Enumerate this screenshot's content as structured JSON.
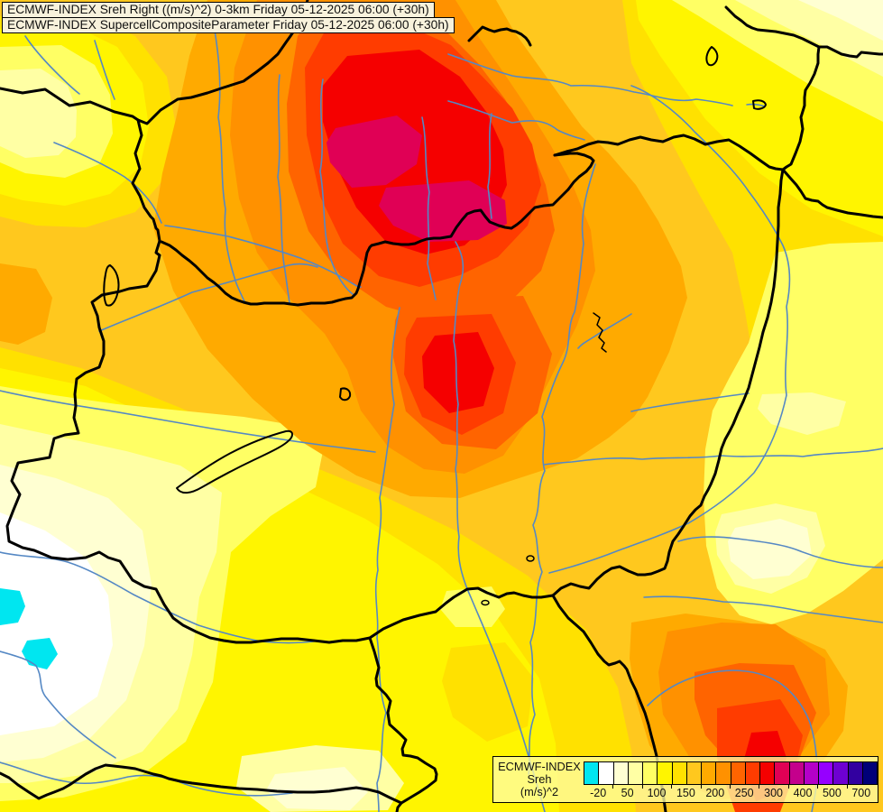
{
  "header": {
    "line1": "ECMWF-INDEX Sreh Right ((m/s)^2) 0-3km Friday 05-12-2025 06:00 (+30h)",
    "line2": "ECMWF-INDEX SupercellCompositeParameter Friday 05-12-2025 06:00 (+30h)"
  },
  "legend": {
    "title_line1": "ECMWF-INDEX",
    "title_line2": "Sreh",
    "title_line3": "(m/s)^2",
    "ticks": [
      "-20",
      "50",
      "100",
      "150",
      "200",
      "250",
      "300",
      "400",
      "500",
      "700"
    ],
    "swatches": [
      "#00E6F0",
      "#FFFFFF",
      "#FFFFD2",
      "#FFFFA4",
      "#FFFF64",
      "#FFF500",
      "#FFE100",
      "#FFC81E",
      "#FFAA00",
      "#FF9100",
      "#FF6400",
      "#FF3C00",
      "#F50000",
      "#E00055",
      "#C4008C",
      "#B400C8",
      "#9600FF",
      "#6E00D2",
      "#3200A0",
      "#000078"
    ]
  },
  "map": {
    "base_color": "#FFC81E",
    "border_color": "#000000",
    "river_color": "#5588C4"
  }
}
